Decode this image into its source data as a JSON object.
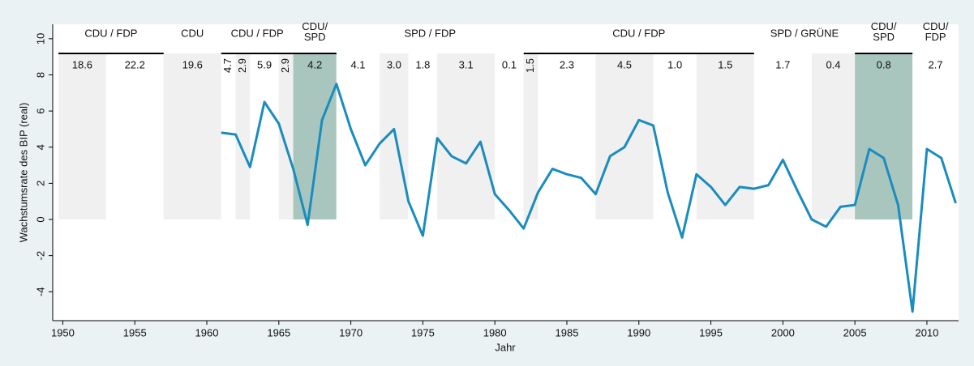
{
  "chart_data": {
    "type": "line",
    "ylabel": "Wachstumsrate des BIP (real)",
    "xlabel": "Jahr",
    "xlim": [
      1949.3,
      2012.2
    ],
    "ylim": [
      -5.6,
      10.8
    ],
    "xticks": [
      1950,
      1955,
      1960,
      1965,
      1970,
      1975,
      1980,
      1985,
      1990,
      1995,
      2000,
      2005,
      2010
    ],
    "yticks": [
      -4,
      -2,
      0,
      2,
      4,
      6,
      8,
      10
    ],
    "x": [
      1961,
      1962,
      1963,
      1964,
      1965,
      1966,
      1967,
      1968,
      1969,
      1970,
      1971,
      1972,
      1973,
      1974,
      1975,
      1976,
      1977,
      1978,
      1979,
      1980,
      1981,
      1982,
      1983,
      1984,
      1985,
      1986,
      1987,
      1988,
      1989,
      1990,
      1991,
      1992,
      1993,
      1994,
      1995,
      1996,
      1997,
      1998,
      1999,
      2000,
      2001,
      2002,
      2003,
      2004,
      2005,
      2006,
      2007,
      2008,
      2009,
      2010,
      2011,
      2012
    ],
    "series": [
      {
        "name": "BIP",
        "color": "#1a8cbd",
        "values": [
          4.8,
          4.7,
          2.9,
          6.5,
          5.3,
          2.8,
          -0.3,
          5.5,
          7.5,
          5.0,
          3.0,
          4.2,
          5.0,
          1.0,
          -0.9,
          4.5,
          3.5,
          3.1,
          4.3,
          1.4,
          0.5,
          -0.5,
          1.5,
          2.8,
          2.5,
          2.3,
          1.4,
          3.5,
          4.0,
          5.5,
          5.2,
          1.5,
          -1.0,
          2.5,
          1.8,
          0.8,
          1.8,
          1.7,
          1.9,
          3.3,
          1.6,
          0.0,
          -0.4,
          0.7,
          0.8,
          3.9,
          3.4,
          0.8,
          -5.1,
          3.9,
          3.4,
          0.9
        ]
      }
    ],
    "periods": {
      "start": [
        1949.7,
        1953,
        1957,
        1961,
        1962,
        1963,
        1965,
        1966,
        1969,
        1972,
        1974,
        1976,
        1980,
        1982,
        1983,
        1987,
        1991,
        1994,
        1998,
        2002,
        2005,
        2009
      ],
      "end": [
        1953,
        1957,
        1961,
        1962,
        1963,
        1965,
        1966,
        1969,
        1972,
        1974,
        1976,
        1980,
        1982,
        1983,
        1987,
        1991,
        1994,
        1998,
        2002,
        2005,
        2009,
        2012.2
      ],
      "values": [
        18.6,
        22.2,
        19.6,
        4.7,
        2.9,
        5.9,
        2.9,
        4.2,
        4.1,
        3.0,
        1.8,
        3.1,
        0.1,
        1.5,
        2.3,
        4.5,
        1.0,
        1.5,
        1.7,
        0.4,
        0.8,
        2.7
      ],
      "value_labels": [
        "18.6",
        "22.2",
        "19.6",
        "4.7",
        "2.9",
        "5.9",
        "2.9",
        "4.2",
        "4.1",
        "3.0",
        "1.8",
        "3.1",
        "0.1",
        "1.5",
        "2.3",
        "4.5",
        "1.0",
        "1.5",
        "1.7",
        "0.4",
        "0.8",
        "2.7"
      ],
      "fill": [
        "#f0f0f0",
        "#ffffff",
        "#f0f0f0",
        "#ffffff",
        "#f0f0f0",
        "#ffffff",
        "#f0f0f0",
        "#a9c6be",
        "#ffffff",
        "#f0f0f0",
        "#ffffff",
        "#f0f0f0",
        "#ffffff",
        "#f0f0f0",
        "#ffffff",
        "#f0f0f0",
        "#ffffff",
        "#f0f0f0",
        "#ffffff",
        "#f0f0f0",
        "#a9c6be",
        "#ffffff"
      ]
    },
    "coalitions": [
      {
        "start": 1949.7,
        "end": 1957,
        "lines": [
          "CDU / FDP"
        ],
        "topline": true
      },
      {
        "start": 1957,
        "end": 1961,
        "lines": [
          "CDU"
        ],
        "topline": false
      },
      {
        "start": 1961,
        "end": 1966,
        "lines": [
          "CDU / FDP"
        ],
        "topline": true
      },
      {
        "start": 1966,
        "end": 1969,
        "lines": [
          "CDU/",
          "SPD"
        ],
        "topline": true
      },
      {
        "start": 1969,
        "end": 1982,
        "lines": [
          "SPD / FDP"
        ],
        "topline": false
      },
      {
        "start": 1982,
        "end": 1998,
        "lines": [
          "CDU / FDP"
        ],
        "topline": true
      },
      {
        "start": 1998,
        "end": 2005,
        "lines": [
          "SPD / GRÜNE"
        ],
        "topline": false
      },
      {
        "start": 2005,
        "end": 2009,
        "lines": [
          "CDU/",
          "SPD"
        ],
        "topline": true
      },
      {
        "start": 2009,
        "end": 2012.2,
        "lines": [
          "CDU/",
          "FDP"
        ],
        "topline": false
      }
    ]
  }
}
